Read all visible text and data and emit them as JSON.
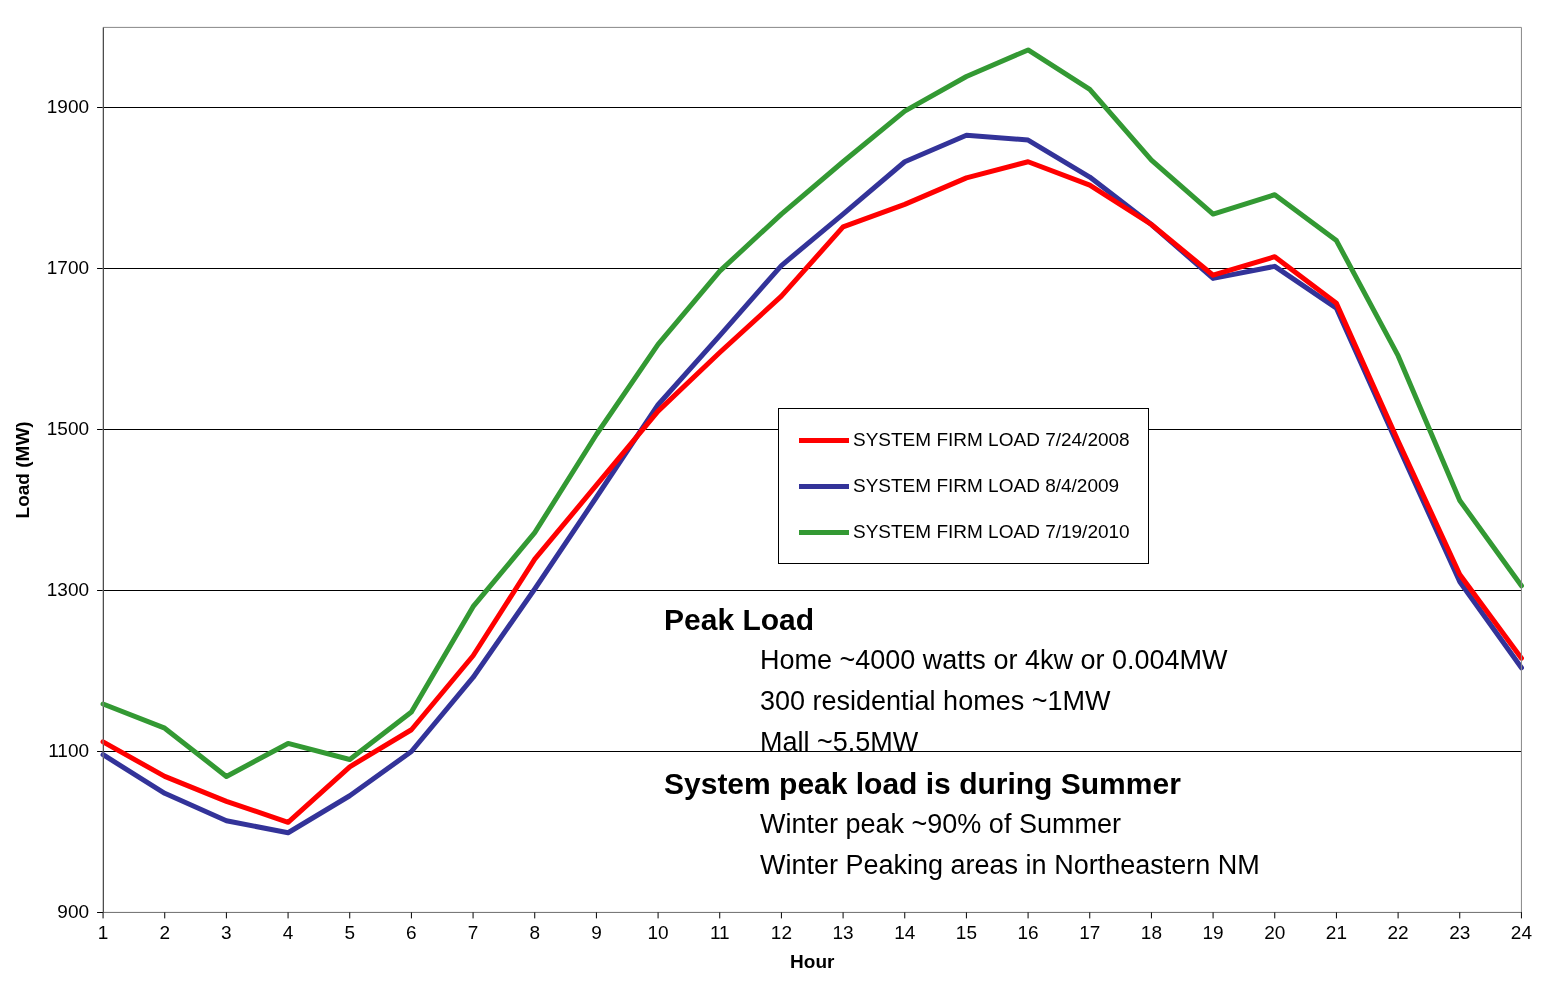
{
  "chart_data": {
    "type": "line",
    "xlabel": "Hour",
    "ylabel": "Load (MW)",
    "x": [
      1,
      2,
      3,
      4,
      5,
      6,
      7,
      8,
      9,
      10,
      11,
      12,
      13,
      14,
      15,
      16,
      17,
      18,
      19,
      20,
      21,
      22,
      23,
      24
    ],
    "xlim": [
      1,
      24
    ],
    "xticks": [
      1,
      2,
      3,
      4,
      5,
      6,
      7,
      8,
      9,
      10,
      11,
      12,
      13,
      14,
      15,
      16,
      17,
      18,
      19,
      20,
      21,
      22,
      23,
      24
    ],
    "ylim": [
      900,
      2000
    ],
    "yticks": [
      900,
      1100,
      1300,
      1500,
      1700,
      1900
    ],
    "grid": "y",
    "legend": "right",
    "marker": "none",
    "line_style": "solid",
    "series": [
      {
        "name": "SYSTEM FIRM LOAD 7/24/2008",
        "color": "#ff0000",
        "values": [
          1112,
          1069,
          1038,
          1012,
          1081,
          1127,
          1219,
          1339,
          1431,
          1523,
          1596,
          1666,
          1752,
          1780,
          1813,
          1833,
          1804,
          1755,
          1692,
          1715,
          1657,
          1486,
          1320,
          1216
        ]
      },
      {
        "name": "SYSTEM FIRM LOAD 8/4/2009",
        "color": "#333399",
        "values": [
          1096,
          1048,
          1014,
          999,
          1045,
          1100,
          1192,
          1302,
          1416,
          1531,
          1617,
          1704,
          1768,
          1833,
          1866,
          1860,
          1814,
          1755,
          1688,
          1703,
          1651,
          1480,
          1311,
          1204
        ]
      },
      {
        "name": "SYSTEM FIRM LOAD 7/19/2010",
        "color": "#339933",
        "values": [
          1159,
          1129,
          1069,
          1110,
          1090,
          1149,
          1280,
          1372,
          1494,
          1606,
          1697,
          1768,
          1833,
          1896,
          1939,
          1972,
          1923,
          1835,
          1768,
          1792,
          1735,
          1592,
          1412,
          1306
        ]
      }
    ],
    "annotations": [
      "Peak Load",
      "Home ~4000 watts or 4kw or 0.004MW",
      "300 residential homes ~1MW",
      "Mall ~5.5MW",
      "System peak load is during Summer",
      "Winter peak ~90% of Summer",
      "Winter Peaking areas in Northeastern NM"
    ]
  }
}
